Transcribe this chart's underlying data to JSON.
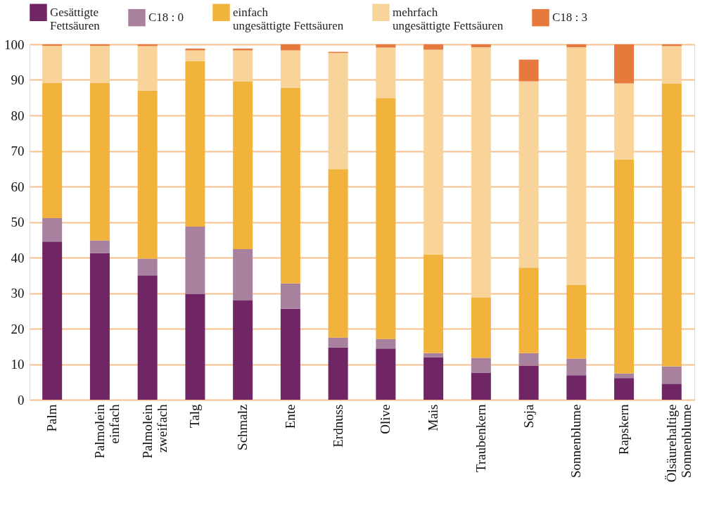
{
  "chart_data": {
    "type": "bar",
    "stacked": true,
    "categories": [
      "Palm",
      "Palmolein einfach",
      "Palmolein zweifach",
      "Talg",
      "Schmalz",
      "Ente",
      "Erdnuss",
      "Olive",
      "Mais",
      "Traubenkern",
      "Soja",
      "Sonnenblume",
      "Rapskern",
      "Ölsäurehaltige Sonnenblume"
    ],
    "series": [
      {
        "name": "Gesättigte Fettsäuren",
        "color": "#702564",
        "values": [
          44.5,
          41.3,
          35.0,
          29.7,
          27.9,
          25.6,
          14.7,
          14.4,
          12.0,
          7.6,
          9.6,
          6.9,
          6.1,
          4.5
        ]
      },
      {
        "name": "C18 : 0",
        "color": "#a8819f",
        "values": [
          6.6,
          3.5,
          4.7,
          19.0,
          14.5,
          7.1,
          2.8,
          2.7,
          1.1,
          4.2,
          3.5,
          4.7,
          1.3,
          4.9
        ]
      },
      {
        "name": "einfach ungesättigte Fettsäuren",
        "color": "#f2b33d",
        "values": [
          38.1,
          44.4,
          47.3,
          46.6,
          47.2,
          55.1,
          47.4,
          67.8,
          27.7,
          17.0,
          24.1,
          20.8,
          60.2,
          79.6
        ]
      },
      {
        "name": "mehrfach ungesättigte Fettsäuren",
        "color": "#f8d49a",
        "values": [
          10.4,
          10.4,
          12.5,
          3.0,
          8.7,
          10.5,
          32.7,
          14.2,
          57.7,
          70.4,
          52.4,
          66.8,
          21.4,
          10.5
        ]
      },
      {
        "name": "C18 : 3",
        "color": "#e6793b",
        "values": [
          0.4,
          0.4,
          0.5,
          0.5,
          0.5,
          1.7,
          0.3,
          0.9,
          1.5,
          0.8,
          6.1,
          0.8,
          11.0,
          0.5
        ]
      }
    ],
    "ylim": [
      0,
      100
    ],
    "yticks": [
      0,
      10,
      20,
      30,
      40,
      50,
      60,
      70,
      80,
      90,
      100
    ],
    "grid": "y",
    "legend": "top"
  }
}
